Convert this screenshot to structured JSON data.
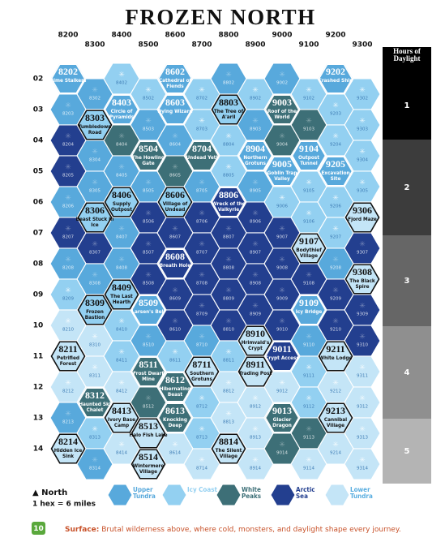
{
  "title": "FROZEN NORTH",
  "columns": [
    "8200",
    "8300",
    "8400",
    "8500",
    "8600",
    "8700",
    "8800",
    "8900",
    "9000",
    "9100",
    "9200",
    "9300"
  ],
  "rows": [
    "02",
    "03",
    "04",
    "05",
    "06",
    "07",
    "08",
    "09",
    "10",
    "11",
    "12",
    "13",
    "14"
  ],
  "daylight": {
    "title": "Hours of Daylight",
    "levels": [
      "1",
      "2",
      "3",
      "4",
      "5"
    ]
  },
  "legend": [
    {
      "name": "Upper Tundra",
      "color": "#58a9dc"
    },
    {
      "name": "Icy Coast",
      "color": "#93d0f1"
    },
    {
      "name": "White Peaks",
      "color": "#3d6f77"
    },
    {
      "name": "Arctic Sea",
      "color": "#233f8f"
    },
    {
      "name": "Lower Tundra",
      "color": "#c4e5f7"
    }
  ],
  "scale": {
    "north": "▲ North",
    "hex": "1 hex = 6 miles"
  },
  "footer": {
    "page": "10",
    "label": "Surface:",
    "text": " Brutal wilderness above, where cold, monsters, and daylight shape every journey."
  },
  "hexes": [
    {
      "id": "8202",
      "t": 0,
      "name": "Rime Stalkers"
    },
    {
      "id": "8302",
      "t": 0
    },
    {
      "id": "8402",
      "t": 1
    },
    {
      "id": "8502",
      "t": 1
    },
    {
      "id": "8602",
      "t": 0,
      "name": "Cathedral of Fiends"
    },
    {
      "id": "8702",
      "t": 1
    },
    {
      "id": "8802",
      "t": 0
    },
    {
      "id": "8902",
      "t": 1
    },
    {
      "id": "9002",
      "t": 0
    },
    {
      "id": "9102",
      "t": 1
    },
    {
      "id": "9202",
      "t": 0,
      "name": "Crashed Ship"
    },
    {
      "id": "9302",
      "t": 1
    },
    {
      "id": "8203",
      "t": 0
    },
    {
      "id": "8303",
      "t": 1,
      "name": "Tumbledown Road"
    },
    {
      "id": "8403",
      "t": 0,
      "name": "Circle of Pyramids"
    },
    {
      "id": "8503",
      "t": 0
    },
    {
      "id": "8603",
      "t": 0,
      "name": "Dying Wizard"
    },
    {
      "id": "8703",
      "t": 1
    },
    {
      "id": "8803",
      "t": 1,
      "name": "The Tree of A'aril"
    },
    {
      "id": "8903",
      "t": 0
    },
    {
      "id": "9003",
      "t": 2,
      "name": "Roof of the World"
    },
    {
      "id": "9103",
      "t": 2
    },
    {
      "id": "9203",
      "t": 1
    },
    {
      "id": "9303",
      "t": 1
    },
    {
      "id": "8204",
      "t": 3
    },
    {
      "id": "8304",
      "t": 0
    },
    {
      "id": "8404",
      "t": 2
    },
    {
      "id": "8504",
      "t": 2,
      "name": "The Howling Gate"
    },
    {
      "id": "8604",
      "t": 0
    },
    {
      "id": "8704",
      "t": 2,
      "name": "Undead Yeti"
    },
    {
      "id": "8804",
      "t": 1
    },
    {
      "id": "8904",
      "t": 0,
      "name": "Northern Grotuns"
    },
    {
      "id": "9004",
      "t": 2
    },
    {
      "id": "9104",
      "t": 0,
      "name": "Outpost Tunnel"
    },
    {
      "id": "9204",
      "t": 1
    },
    {
      "id": "9304",
      "t": 1
    },
    {
      "id": "8205",
      "t": 3
    },
    {
      "id": "8305",
      "t": 0
    },
    {
      "id": "8405",
      "t": 0
    },
    {
      "id": "8505",
      "t": 0
    },
    {
      "id": "8605",
      "t": 2
    },
    {
      "id": "8705",
      "t": 0
    },
    {
      "id": "8805",
      "t": 1
    },
    {
      "id": "8905",
      "t": 0
    },
    {
      "id": "9005",
      "t": 0,
      "name": "Goblin Trap Valley"
    },
    {
      "id": "9105",
      "t": 1
    },
    {
      "id": "9205",
      "t": 0,
      "name": "Excavation Site"
    },
    {
      "id": "9305",
      "t": 1
    },
    {
      "id": "8206",
      "t": 0
    },
    {
      "id": "8306",
      "t": 1,
      "name": "Beast Stuck In Ice"
    },
    {
      "id": "8406",
      "t": 1,
      "name": "Supply Outpost"
    },
    {
      "id": "8506",
      "t": 3
    },
    {
      "id": "8606",
      "t": 1,
      "name": "Village of Undead"
    },
    {
      "id": "8706",
      "t": 3
    },
    {
      "id": "8806",
      "t": 3,
      "name": "Wreck of the Valkyrie"
    },
    {
      "id": "8906",
      "t": 3
    },
    {
      "id": "9006",
      "t": 1
    },
    {
      "id": "9106",
      "t": 1
    },
    {
      "id": "9206",
      "t": 1
    },
    {
      "id": "9306",
      "t": 4,
      "name": "Fjord Maze"
    },
    {
      "id": "8207",
      "t": 3
    },
    {
      "id": "8307",
      "t": 3
    },
    {
      "id": "8407",
      "t": 0
    },
    {
      "id": "8507",
      "t": 3
    },
    {
      "id": "8607",
      "t": 3
    },
    {
      "id": "8707",
      "t": 3
    },
    {
      "id": "8807",
      "t": 3
    },
    {
      "id": "8907",
      "t": 3
    },
    {
      "id": "9007",
      "t": 3
    },
    {
      "id": "9107",
      "t": 4,
      "name": "Bodythief Village"
    },
    {
      "id": "9207",
      "t": 1
    },
    {
      "id": "9307",
      "t": 3
    },
    {
      "id": "8208",
      "t": 0
    },
    {
      "id": "8308",
      "t": 0
    },
    {
      "id": "8408",
      "t": 0
    },
    {
      "id": "8508",
      "t": 3
    },
    {
      "id": "8608",
      "t": 3,
      "name": "Breath Hole"
    },
    {
      "id": "8708",
      "t": 3
    },
    {
      "id": "8808",
      "t": 3
    },
    {
      "id": "8908",
      "t": 3
    },
    {
      "id": "9008",
      "t": 3
    },
    {
      "id": "9108",
      "t": 3
    },
    {
      "id": "9208",
      "t": 0
    },
    {
      "id": "9308",
      "t": 4,
      "name": "The Black Spire"
    },
    {
      "id": "8209",
      "t": 1
    },
    {
      "id": "8309",
      "t": 1,
      "name": "Frozen Bastion"
    },
    {
      "id": "8409",
      "t": 1,
      "name": "The Last Hearth"
    },
    {
      "id": "8509",
      "t": 0,
      "name": "Larsen's Bell"
    },
    {
      "id": "8609",
      "t": 3
    },
    {
      "id": "8709",
      "t": 3
    },
    {
      "id": "8809",
      "t": 3
    },
    {
      "id": "8909",
      "t": 3
    },
    {
      "id": "9009",
      "t": 3
    },
    {
      "id": "9109",
      "t": 0,
      "name": "Icy Bridge"
    },
    {
      "id": "9209",
      "t": 3
    },
    {
      "id": "9309",
      "t": 3
    },
    {
      "id": "8210",
      "t": 4
    },
    {
      "id": "8310",
      "t": 4
    },
    {
      "id": "8410",
      "t": 1
    },
    {
      "id": "8510",
      "t": 0
    },
    {
      "id": "8610",
      "t": 3
    },
    {
      "id": "8710",
      "t": 0
    },
    {
      "id": "8810",
      "t": 3
    },
    {
      "id": "8910",
      "t": 4,
      "name": "Hrimvald's Crypt"
    },
    {
      "id": "9010",
      "t": 3
    },
    {
      "id": "9110",
      "t": 0
    },
    {
      "id": "9210",
      "t": 3
    },
    {
      "id": "9310",
      "t": 3
    },
    {
      "id": "8211",
      "t": 4,
      "name": "Petrified Forest"
    },
    {
      "id": "8311",
      "t": 4
    },
    {
      "id": "8411",
      "t": 1
    },
    {
      "id": "8511",
      "t": 2,
      "name": "Frost Dwarf Mine"
    },
    {
      "id": "8611",
      "t": 1
    },
    {
      "id": "8711",
      "t": 4,
      "name": "Southern Grotuns"
    },
    {
      "id": "8811",
      "t": 1
    },
    {
      "id": "8911",
      "t": 4,
      "name": "Trading Post"
    },
    {
      "id": "9011",
      "t": 3,
      "name": "Crypt Access"
    },
    {
      "id": "9111",
      "t": 1
    },
    {
      "id": "9211",
      "t": 4,
      "name": "White Lodge"
    },
    {
      "id": "9311",
      "t": 4
    },
    {
      "id": "8212",
      "t": 4
    },
    {
      "id": "8312",
      "t": 2,
      "name": "Haunted Ski Chalet"
    },
    {
      "id": "8412",
      "t": 4
    },
    {
      "id": "8512",
      "t": 2
    },
    {
      "id": "8612",
      "t": 2,
      "name": "Hibernating Beast"
    },
    {
      "id": "8712",
      "t": 1
    },
    {
      "id": "8812",
      "t": 4
    },
    {
      "id": "8912",
      "t": 4
    },
    {
      "id": "9012",
      "t": 4
    },
    {
      "id": "9112",
      "t": 1
    },
    {
      "id": "9212",
      "t": 4
    },
    {
      "id": "9312",
      "t": 4
    },
    {
      "id": "8213",
      "t": 0
    },
    {
      "id": "8313",
      "t": 1
    },
    {
      "id": "8413",
      "t": 4,
      "name": "Ivory Base Camp"
    },
    {
      "id": "8513",
      "t": 4,
      "name": "Halo Fish Lake"
    },
    {
      "id": "8613",
      "t": 2,
      "name": "Knocking Deep"
    },
    {
      "id": "8713",
      "t": 1
    },
    {
      "id": "8813",
      "t": 4
    },
    {
      "id": "8913",
      "t": 4
    },
    {
      "id": "9013",
      "t": 2,
      "name": "Glacier Dragon"
    },
    {
      "id": "9113",
      "t": 2
    },
    {
      "id": "9213",
      "t": 4,
      "name": "Cannibal Village"
    },
    {
      "id": "9313",
      "t": 4
    },
    {
      "id": "8214",
      "t": 4,
      "name": "Hidden Ice Sink"
    },
    {
      "id": "8314",
      "t": 0
    },
    {
      "id": "8414",
      "t": 4
    },
    {
      "id": "8514",
      "t": 4,
      "name": "Wintermere Village"
    },
    {
      "id": "8614",
      "t": 4
    },
    {
      "id": "8714",
      "t": 4
    },
    {
      "id": "8814",
      "t": 4,
      "name": "The Silent Village"
    },
    {
      "id": "8914",
      "t": 4
    },
    {
      "id": "9014",
      "t": 2
    },
    {
      "id": "9114",
      "t": 4
    },
    {
      "id": "9214",
      "t": 4
    },
    {
      "id": "9314",
      "t": 4
    }
  ]
}
